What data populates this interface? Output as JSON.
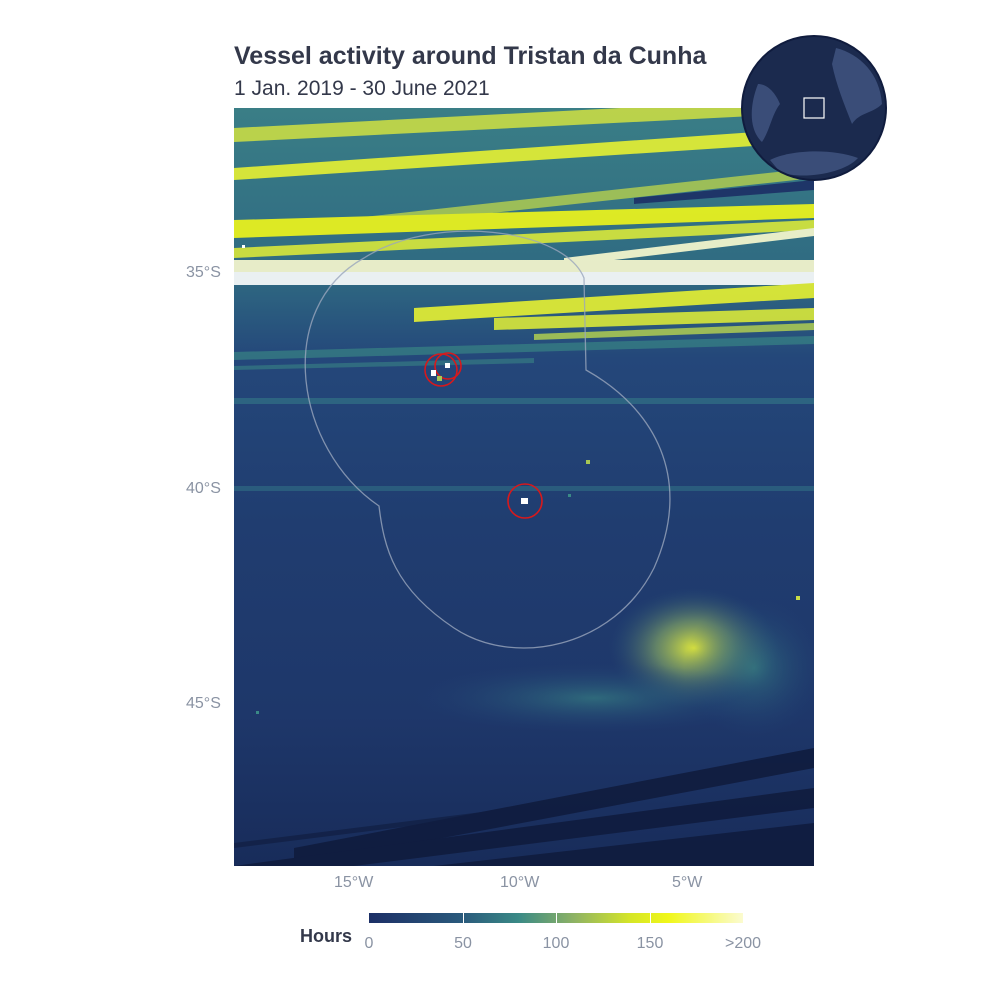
{
  "title": "Vessel activity around Tristan da Cunha",
  "subtitle": "1 Jan. 2019 - 30 June 2021",
  "map": {
    "latitude_labels": [
      "35°S",
      "40°S",
      "45°S"
    ],
    "longitude_labels": [
      "15°W",
      "10°W",
      "5°W"
    ],
    "highlighted_islands": [
      "island-group-west",
      "gough-island"
    ],
    "colors": {
      "low_activity": "#1c2f66",
      "mid_activity": "#3a8a86",
      "high_activity": "#f0f71a",
      "max_activity": "#fbfbd0",
      "eez_boundary": "#9aa6bd",
      "island_highlight": "#d7191c"
    }
  },
  "legend": {
    "title": "Hours",
    "ticks": [
      "0",
      "50",
      "100",
      "150",
      ">200"
    ],
    "values": [
      0,
      50,
      100,
      150,
      200
    ]
  },
  "inset_globe": {
    "ocean_color": "#1b2a4e",
    "land_color": "#3a4d78",
    "focus_box": "Tristan da Cunha region"
  }
}
